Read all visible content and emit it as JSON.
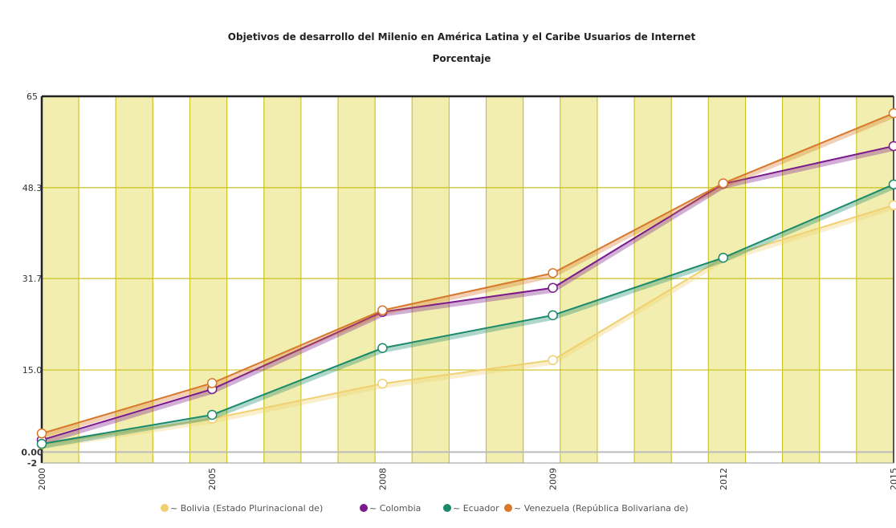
{
  "chart_data": {
    "type": "line",
    "title": "Objetivos de desarrollo del Milenio en América Latina y el Caribe Usuarios de Internet",
    "subtitle": "Porcentaje",
    "categories": [
      "2000",
      "2005",
      "2008",
      "2009",
      "2012",
      "2015"
    ],
    "y_ticks": [
      "65",
      "48.3",
      "31.7",
      "15.0",
      "0.00",
      "-2"
    ],
    "ylim": [
      -2,
      65
    ],
    "grid": true,
    "legend_position": "bottom",
    "series": [
      {
        "name": "Bolivia (Estado Plurinacional de)",
        "color": "#f0d070",
        "values": [
          1.4,
          6.1,
          12.5,
          16.8,
          35.5,
          45.1
        ]
      },
      {
        "name": "Colombia",
        "color": "#7a1a8c",
        "values": [
          2.2,
          11.5,
          25.6,
          30.0,
          49.0,
          55.9
        ]
      },
      {
        "name": "Ecuador",
        "color": "#1a8a6a",
        "values": [
          1.5,
          6.8,
          19.0,
          25.0,
          35.5,
          48.9
        ]
      },
      {
        "name": "Venezuela (República Bolivariana de)",
        "color": "#d8782a",
        "values": [
          3.4,
          12.6,
          25.9,
          32.7,
          49.1,
          61.9
        ]
      }
    ],
    "legend_marker": "~"
  }
}
